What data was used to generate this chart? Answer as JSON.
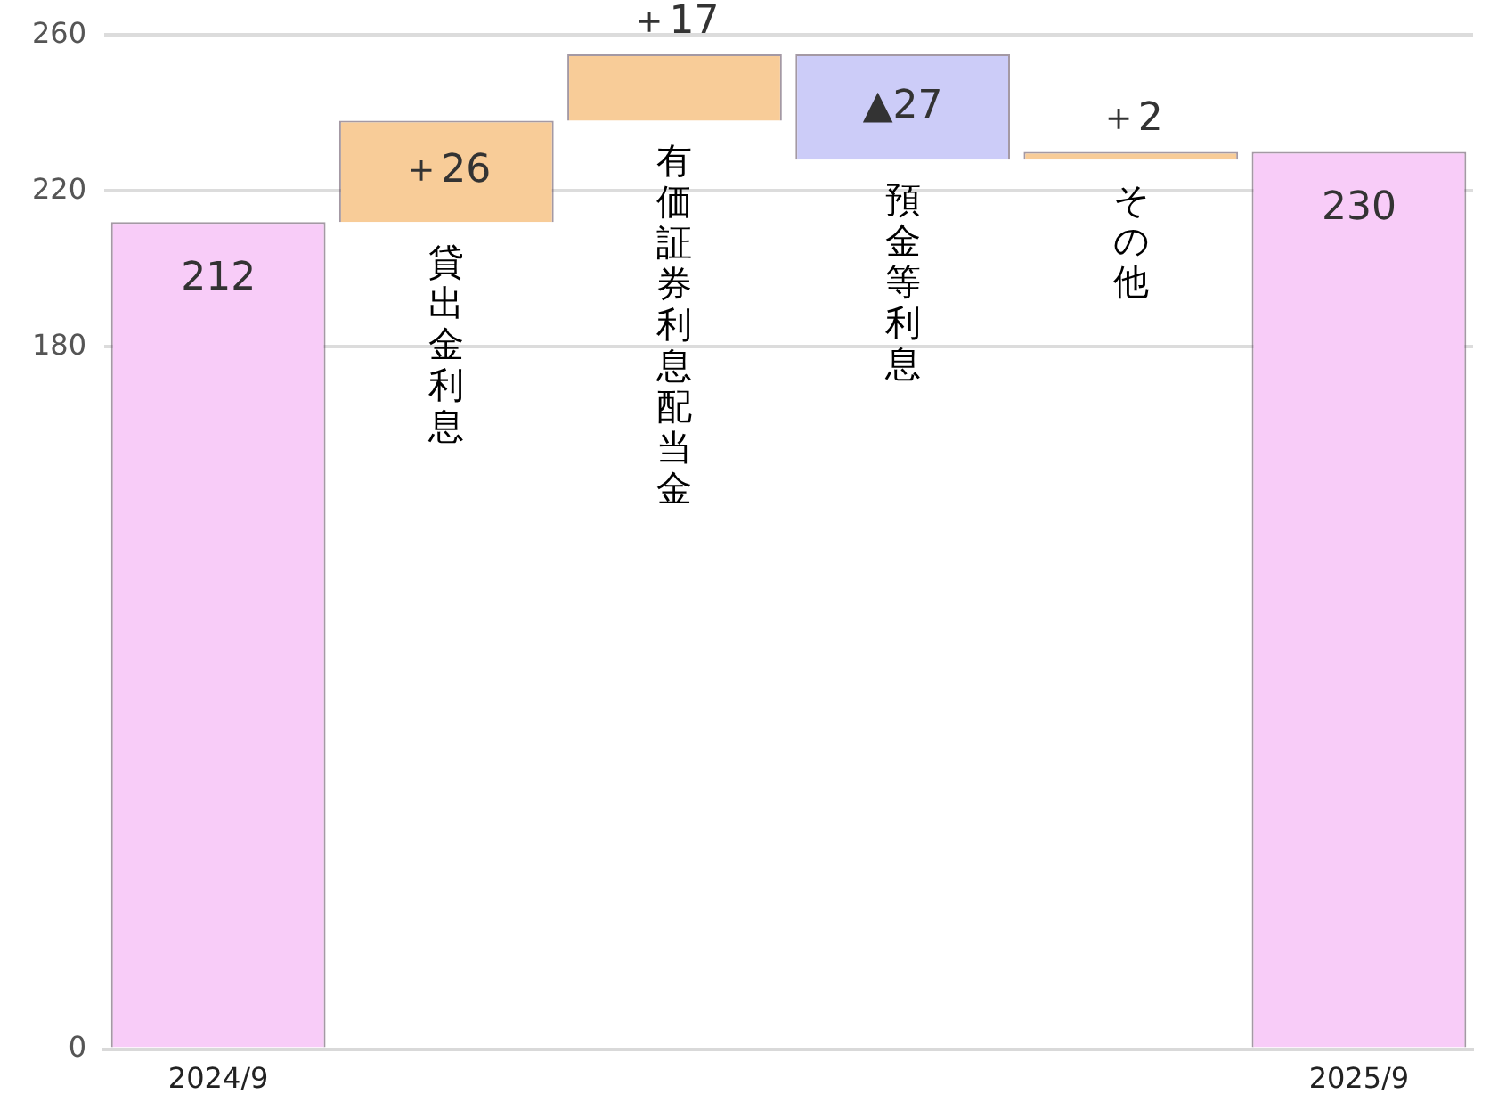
{
  "chart_data": {
    "type": "bar",
    "categories": [
      "2024/9",
      "貸出金利息",
      "有価証券利息配当金",
      "預金等利息",
      "その他",
      "2025/9"
    ],
    "base": [
      0,
      212,
      238,
      255,
      228,
      0
    ],
    "values": [
      212,
      26,
      17,
      -27,
      2,
      230
    ],
    "colors": [
      "#f8ccf8",
      "#f8cc98",
      "#f8cc98",
      "#ccccf8",
      "#f8cc98",
      "#f8ccf8"
    ],
    "value_labels": [
      "212",
      "＋26",
      "＋17",
      "▲27",
      "＋2",
      "230"
    ],
    "ylim": [
      0,
      260
    ],
    "yticks": [
      0,
      180,
      220,
      260
    ],
    "grid": "y",
    "legend": false
  }
}
